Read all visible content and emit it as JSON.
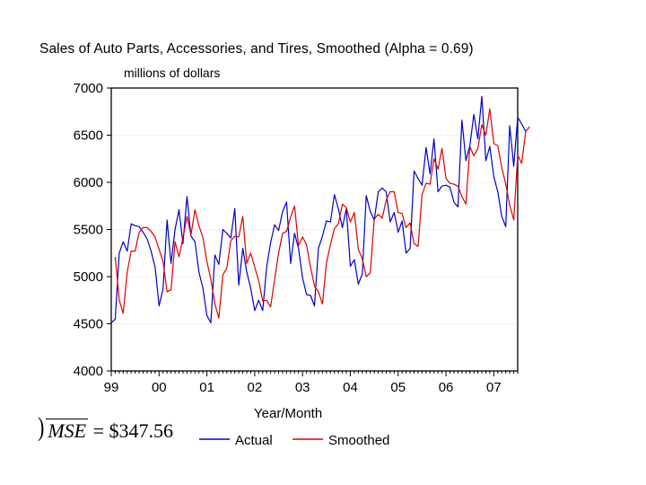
{
  "chart_data": {
    "type": "line",
    "title": "Sales of Auto Parts, Accessories, and Tires, Smoothed (Alpha = 0.69)",
    "ylabel": "millions of dollars",
    "xlabel": "Year/Month",
    "ylim": [
      4000,
      7000
    ],
    "yticks": [
      4000,
      4500,
      5000,
      5500,
      6000,
      6500,
      7000
    ],
    "ytick_labels": [
      "4000",
      "4500",
      "5000",
      "5500",
      "6000",
      "6500",
      "7000"
    ],
    "xlim": [
      1999.0,
      2007.5
    ],
    "xticks": [
      1999,
      2000,
      2001,
      2002,
      2003,
      2004,
      2005,
      2006,
      2007
    ],
    "xtick_labels": [
      "99",
      "00",
      "01",
      "02",
      "03",
      "04",
      "05",
      "06",
      "07"
    ],
    "grid": true,
    "legend_position": "bottom",
    "series": [
      {
        "name": "Actual",
        "color": "#0000cc",
        "x_start": 1999.0,
        "step": 0.0833333,
        "values": [
          4510,
          4550,
          5250,
          5370,
          5270,
          5560,
          5540,
          5530,
          5470,
          5400,
          5270,
          5100,
          4690,
          4870,
          5600,
          5140,
          5500,
          5710,
          5350,
          5850,
          5430,
          5370,
          5050,
          4880,
          4590,
          4510,
          5230,
          5130,
          5500,
          5460,
          5410,
          5720,
          4910,
          5300,
          5050,
          4880,
          4640,
          4750,
          4640,
          5100,
          5360,
          5550,
          5490,
          5690,
          5790,
          5140,
          5460,
          5300,
          4990,
          4810,
          4800,
          4690,
          5300,
          5430,
          5590,
          5580,
          5870,
          5720,
          5520,
          5720,
          5110,
          5180,
          4920,
          5030,
          5860,
          5690,
          5600,
          5900,
          5940,
          5900,
          5580,
          5680,
          5470,
          5590,
          5250,
          5300,
          6120,
          6040,
          5970,
          6370,
          6090,
          6460,
          5900,
          5960,
          5970,
          5950,
          5790,
          5740,
          6660,
          6230,
          6390,
          6720,
          6460,
          6910,
          6230,
          6380,
          6060,
          5900,
          5640,
          5530,
          6600,
          6170,
          6690,
          6620,
          6540
        ]
      },
      {
        "name": "Smoothed",
        "color": "#dd0000",
        "x_start": 1999.0833333,
        "step": 0.0833333,
        "values": [
          5210,
          4750,
          4610,
          5050,
          5270,
          5270,
          5470,
          5520,
          5520,
          5480,
          5420,
          5290,
          5160,
          4840,
          4860,
          5370,
          5210,
          5410,
          5640,
          5440,
          5710,
          5540,
          5420,
          5160,
          4970,
          4710,
          4560,
          5020,
          5090,
          5380,
          5430,
          5420,
          5640,
          5140,
          5250,
          5100,
          4960,
          4740,
          4750,
          4680,
          4970,
          5250,
          5460,
          5480,
          5630,
          5750,
          5330,
          5420,
          5340,
          5100,
          4900,
          4840,
          4710,
          5140,
          5340,
          5510,
          5560,
          5770,
          5730,
          5580,
          5680,
          5290,
          5190,
          5000,
          5040,
          5610,
          5660,
          5620,
          5810,
          5900,
          5900,
          5680,
          5670,
          5520,
          5570,
          5350,
          5320,
          5870,
          5990,
          5980,
          6250,
          6140,
          6360,
          6040,
          5990,
          5980,
          5960,
          5850,
          5770,
          6380,
          6280,
          6360,
          6610,
          6500,
          6780,
          6410,
          6390,
          6160,
          5980,
          5760,
          5600,
          6290,
          6200,
          6540,
          6590
        ]
      }
    ]
  },
  "annotation": {
    "mse_label": "MSE",
    "mse_equals": "= $347.56"
  }
}
